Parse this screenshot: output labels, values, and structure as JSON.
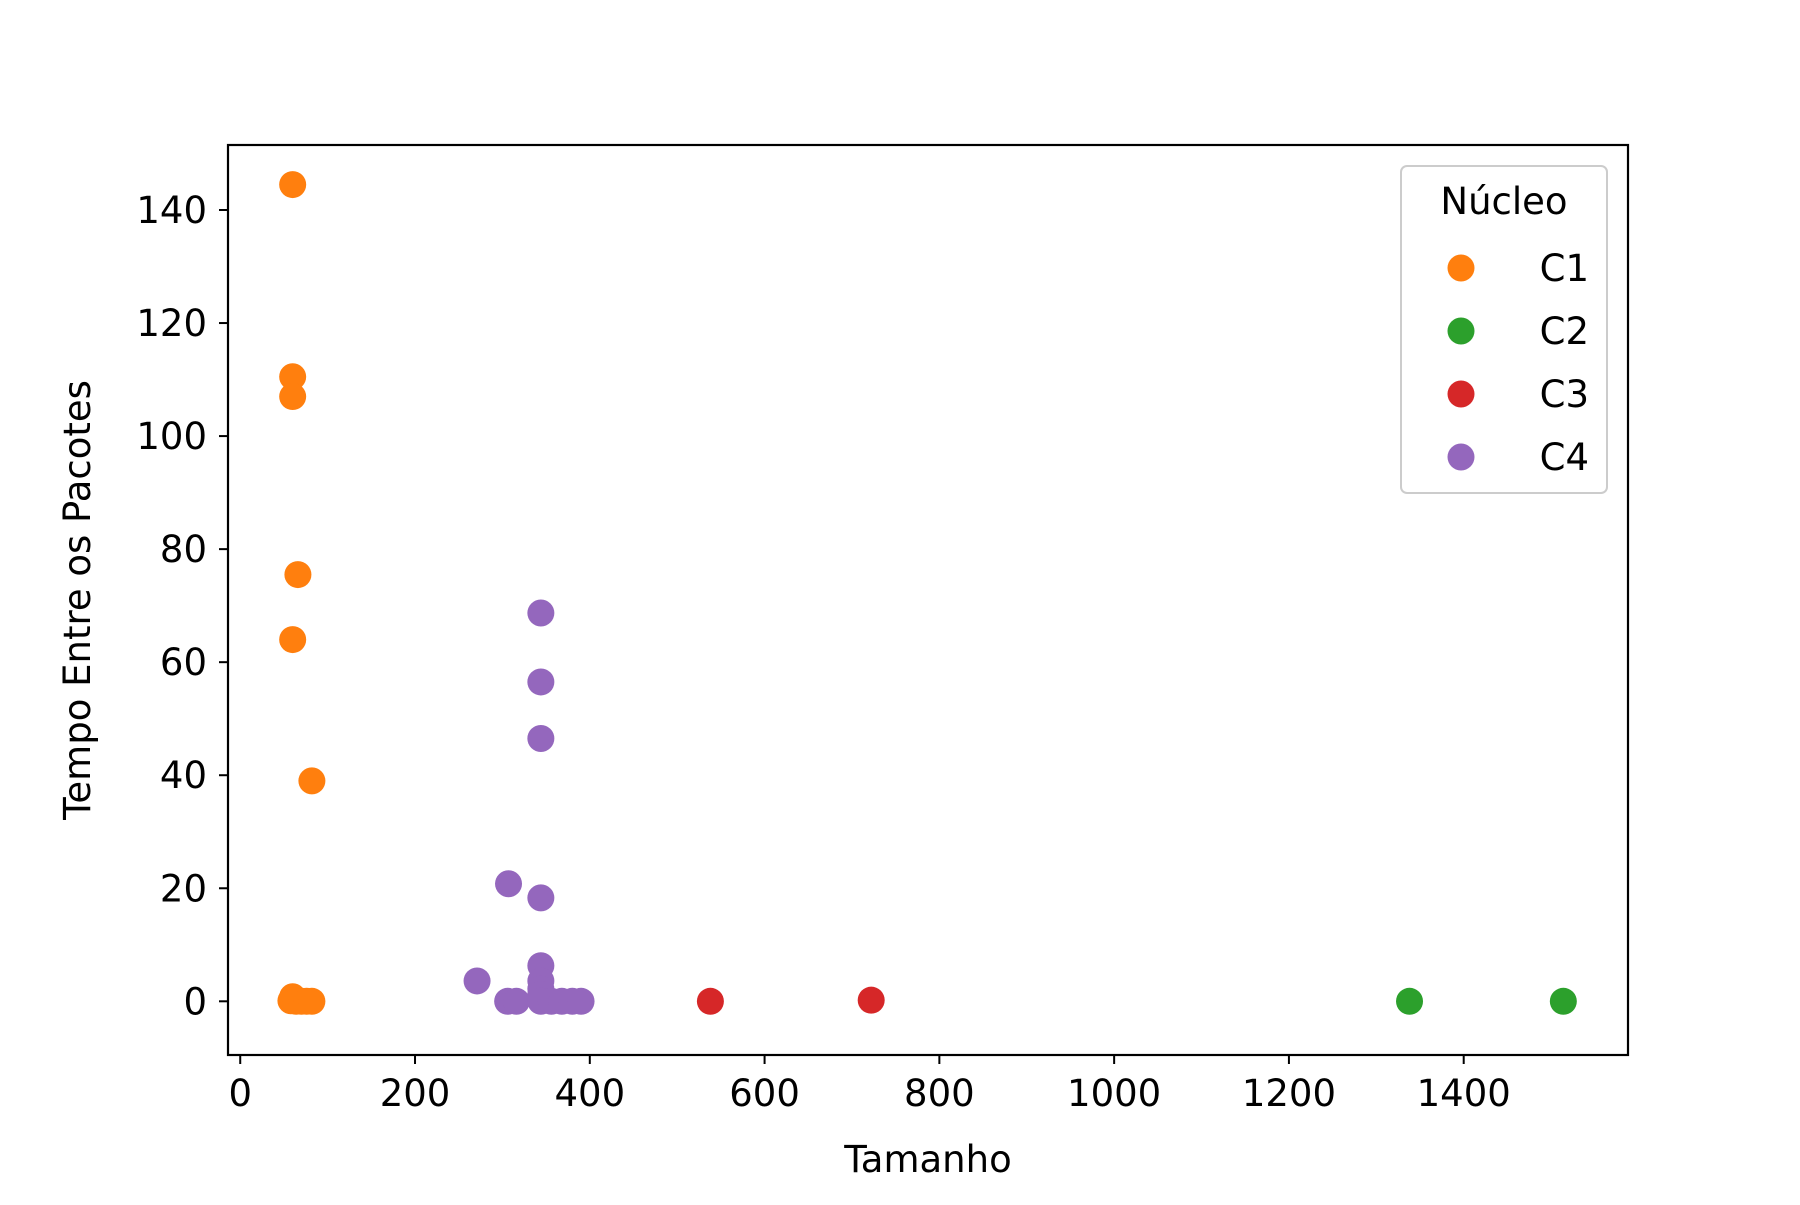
{
  "chart_data": {
    "type": "scatter",
    "title": "",
    "xlabel": "Tamanho",
    "ylabel": "Tempo Entre os Pacotes",
    "xlim": [
      -14,
      1588
    ],
    "ylim": [
      -9.5,
      151.5
    ],
    "xticks": [
      0,
      200,
      400,
      600,
      800,
      1000,
      1200,
      1400
    ],
    "xtick_labels": [
      "0",
      "200",
      "400",
      "600",
      "800",
      "1000",
      "1200",
      "1400"
    ],
    "yticks": [
      0,
      20,
      40,
      60,
      80,
      100,
      120,
      140
    ],
    "ytick_labels": [
      "0",
      "20",
      "40",
      "60",
      "80",
      "100",
      "120",
      "140"
    ],
    "grid": false,
    "legend": {
      "title": "Núcleo",
      "placement": "top-right"
    },
    "series": [
      {
        "name": "C1",
        "color": "#ff7f0e",
        "points": [
          [
            60,
            144.5
          ],
          [
            60,
            110.5
          ],
          [
            60,
            107
          ],
          [
            66,
            75.5
          ],
          [
            60,
            64
          ],
          [
            82,
            39
          ],
          [
            60,
            0.8
          ],
          [
            58,
            0.1
          ],
          [
            64,
            0
          ],
          [
            70,
            0
          ],
          [
            76,
            0
          ],
          [
            82,
            0
          ]
        ]
      },
      {
        "name": "C2",
        "color": "#2ca02c",
        "points": [
          [
            1338,
            0
          ],
          [
            1514,
            0
          ]
        ]
      },
      {
        "name": "C3",
        "color": "#d62728",
        "points": [
          [
            538,
            0
          ],
          [
            722,
            0.2
          ]
        ]
      },
      {
        "name": "C4",
        "color": "#9467bd",
        "points": [
          [
            344,
            68.7
          ],
          [
            344,
            56.5
          ],
          [
            344,
            46.5
          ],
          [
            307,
            20.8
          ],
          [
            344,
            18.3
          ],
          [
            344,
            6.3
          ],
          [
            271,
            3.6
          ],
          [
            344,
            3.6
          ],
          [
            344,
            2.2
          ],
          [
            344,
            1.2
          ],
          [
            306,
            0
          ],
          [
            316,
            0
          ],
          [
            344,
            0
          ],
          [
            356,
            0
          ],
          [
            368,
            0
          ],
          [
            380,
            0
          ],
          [
            390,
            0
          ]
        ]
      }
    ]
  }
}
